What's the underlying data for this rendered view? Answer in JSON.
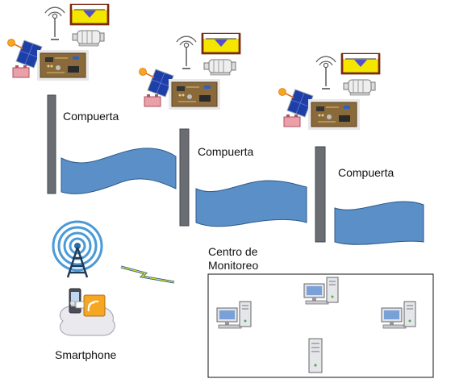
{
  "labels": {
    "gate_1": "Compuerta",
    "gate_2": "Compuerta",
    "gate_3": "Compuerta",
    "monitoring_line1": "Centro de",
    "monitoring_line2": "Monitoreo",
    "smartphone": "Smartphone"
  },
  "colors": {
    "water": "#5b8fc7",
    "gate_pillar": "#6a6e73",
    "solar_panel": "#1f3fa8",
    "sun": "#f5a623",
    "board": "#8a6a3a",
    "tank_fill": "#f5e600",
    "tank_water": "#5050d0",
    "tank_border": "#7a2a12",
    "radio_tower": "#2a6ca8",
    "wireless_bolt": "#e2e62a"
  },
  "icons": {
    "node": [
      "antenna-icon",
      "water-tank-icon",
      "motor-icon",
      "solar-panel-icon",
      "sun-icon",
      "battery-icon",
      "circuit-board-icon"
    ],
    "mobile": [
      "radio-tower-icon",
      "smartphone-icon",
      "wireless-link-icon"
    ],
    "monitoring": [
      "desktop-computer-icon",
      "server-icon"
    ]
  }
}
